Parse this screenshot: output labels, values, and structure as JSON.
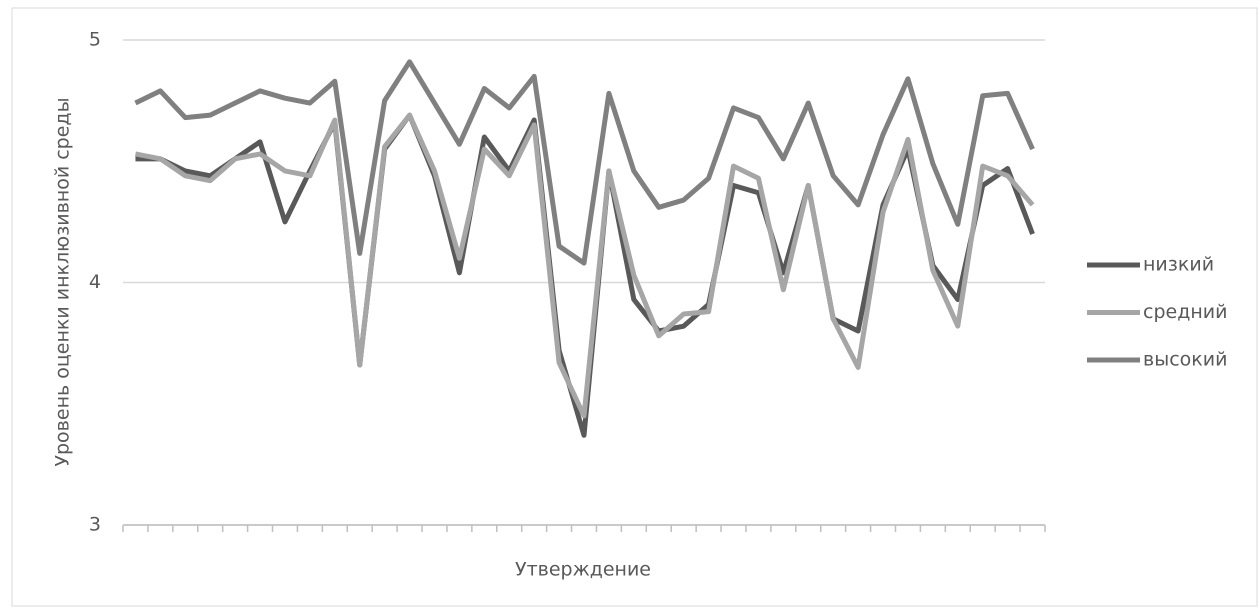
{
  "chart_data": {
    "type": "line",
    "y_label": "Уровень оценки инклюзивной среды",
    "x_label": "Утверждение",
    "categories": [
      null,
      null,
      null,
      null,
      null,
      null,
      null,
      null,
      null,
      null,
      null,
      null,
      null,
      null,
      null,
      null,
      null,
      null,
      null,
      null,
      null,
      null,
      null,
      null,
      null,
      null,
      null,
      null,
      null,
      null,
      null,
      null,
      null,
      null,
      null,
      null,
      null
    ],
    "series": [
      {
        "name": "низкий",
        "color": "#595959",
        "values": [
          4.51,
          4.51,
          4.46,
          4.44,
          4.51,
          4.58,
          4.25,
          4.46,
          4.66,
          3.66,
          4.55,
          4.69,
          4.44,
          4.04,
          4.6,
          4.46,
          4.67,
          3.72,
          3.37,
          4.46,
          3.93,
          3.8,
          3.82,
          3.91,
          4.4,
          4.37,
          4.04,
          4.4,
          3.85,
          3.8,
          4.32,
          4.55,
          4.07,
          3.93,
          4.4,
          4.47,
          4.2
        ]
      },
      {
        "name": "средний",
        "color": "#a6a6a6",
        "values": [
          4.53,
          4.51,
          4.44,
          4.42,
          4.51,
          4.53,
          4.46,
          4.44,
          4.67,
          3.66,
          4.56,
          4.69,
          4.46,
          4.1,
          4.55,
          4.44,
          4.65,
          3.67,
          3.45,
          4.46,
          4.03,
          3.78,
          3.87,
          3.88,
          4.48,
          4.43,
          3.97,
          4.4,
          3.85,
          3.65,
          4.29,
          4.59,
          4.05,
          3.82,
          4.48,
          4.44,
          4.32
        ]
      },
      {
        "name": "высокий",
        "color": "#808080",
        "values": [
          4.74,
          4.79,
          4.68,
          4.69,
          4.74,
          4.79,
          4.76,
          4.74,
          4.83,
          4.12,
          4.75,
          4.91,
          4.74,
          4.57,
          4.8,
          4.72,
          4.85,
          4.15,
          4.08,
          4.78,
          4.46,
          4.31,
          4.34,
          4.43,
          4.72,
          4.68,
          4.51,
          4.74,
          4.44,
          4.32,
          4.61,
          4.84,
          4.49,
          4.24,
          4.77,
          4.78,
          4.55
        ]
      }
    ],
    "ylim": [
      3,
      5
    ],
    "yticks": [
      3,
      4,
      5
    ],
    "grid": true,
    "legend": "right"
  }
}
